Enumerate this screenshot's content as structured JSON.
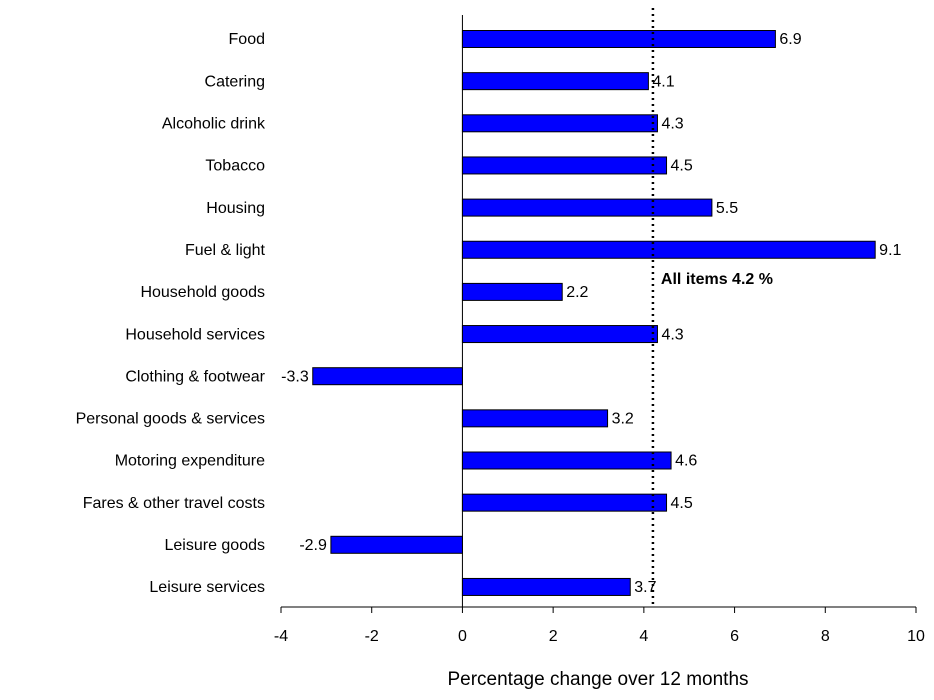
{
  "chart_data": {
    "type": "hbar",
    "categories": [
      "Food",
      "Catering",
      "Alcoholic drink",
      "Tobacco",
      "Housing",
      "Fuel & light",
      "Household goods",
      "Household services",
      "Clothing & footwear",
      "Personal goods & services",
      "Motoring expenditure",
      "Fares & other travel costs",
      "Leisure goods",
      "Leisure services"
    ],
    "values": [
      6.9,
      4.1,
      4.3,
      4.5,
      5.5,
      9.1,
      2.2,
      4.3,
      -3.3,
      3.2,
      4.6,
      4.5,
      -2.9,
      3.7
    ],
    "color": "#0000ff",
    "xlim": [
      -4,
      10
    ],
    "xticks": [
      -4,
      -2,
      0,
      2,
      4,
      6,
      8,
      10
    ],
    "xlabel": "Percentage change over 12 months",
    "reference_line": 4.2,
    "annotation": "All items 4.2 %"
  }
}
